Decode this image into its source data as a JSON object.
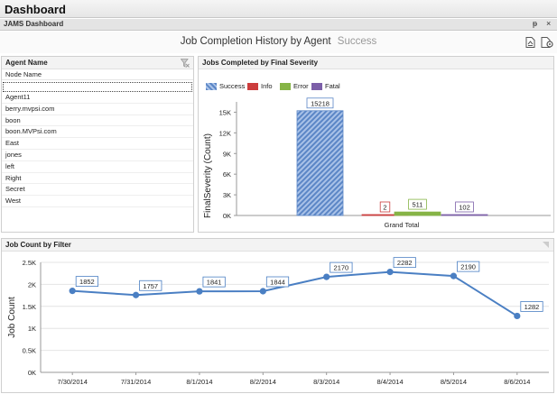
{
  "app": {
    "title": "Dashboard",
    "subtitle": "JAMS Dashboard",
    "pin_glyph": "ᵽ",
    "close_glyph": "×"
  },
  "header": {
    "title": "Job Completion History by Agent",
    "status": "Success",
    "icons": [
      "export-icon",
      "settings-icon"
    ]
  },
  "agents_panel": {
    "title": "Agent Name",
    "column_header": "Node Name",
    "filter_value": "",
    "items": [
      "Agent11",
      "berry.mvpsi.com",
      "boon",
      "boon.MVPsi.com",
      "East",
      "jones",
      "left",
      "Right",
      "Secret",
      "West"
    ]
  },
  "colors": {
    "success": "#5b86c6",
    "info": "#cc3d3d",
    "error": "#86b446",
    "fatal": "#7c5fa8",
    "line": "#4a7fc3"
  },
  "chart_data": [
    {
      "type": "bar",
      "title": "Jobs Completed by Final Severity",
      "ylabel": "FinalSeverity (Count)",
      "categories": [
        "Grand Total"
      ],
      "series": [
        {
          "name": "Success",
          "values": [
            15218
          ]
        },
        {
          "name": "Info",
          "values": [
            2
          ]
        },
        {
          "name": "Error",
          "values": [
            511
          ]
        },
        {
          "name": "Fatal",
          "values": [
            102
          ]
        }
      ],
      "ylim": [
        0,
        16500
      ],
      "yticks": [
        "0K",
        "3K",
        "6K",
        "9K",
        "12K",
        "15K"
      ],
      "legend": "top-left"
    },
    {
      "type": "line",
      "title": "Job Count by Filter",
      "ylabel": "Job Count",
      "x": [
        "7/30/2014",
        "7/31/2014",
        "8/1/2014",
        "8/2/2014",
        "8/3/2014",
        "8/4/2014",
        "8/5/2014",
        "8/6/2014"
      ],
      "values": [
        1852,
        1757,
        1841,
        1844,
        2170,
        2282,
        2190,
        1282
      ],
      "ylim": [
        0,
        2500
      ],
      "yticks": [
        "0K",
        "0.5K",
        "1K",
        "1.5K",
        "2K",
        "2.5K"
      ]
    }
  ]
}
